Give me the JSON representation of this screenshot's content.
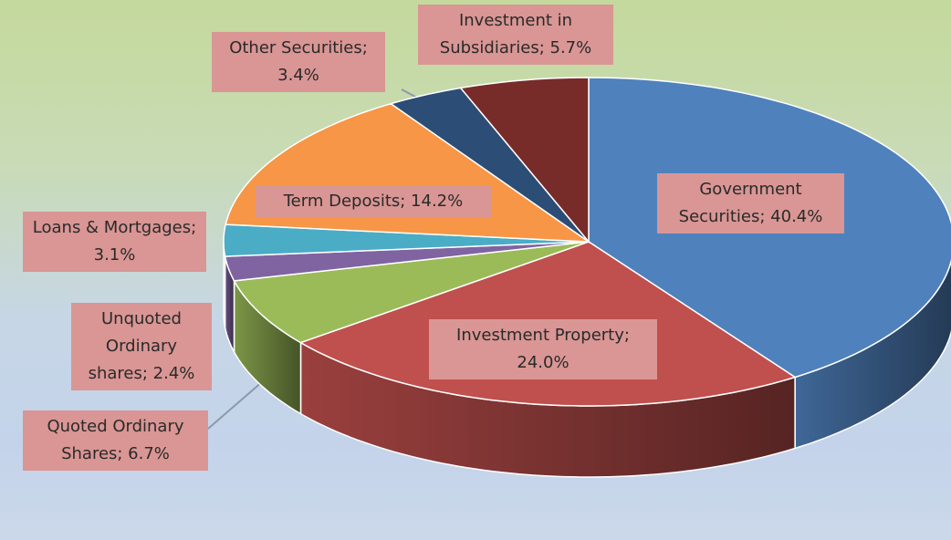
{
  "chart_data": {
    "type": "pie3d",
    "values": [
      40.4,
      24.0,
      6.7,
      2.4,
      3.1,
      14.2,
      3.4,
      5.7
    ],
    "value_labels": [
      "Government Securities; 40.4%",
      "Investment Property; 24.0%",
      "Quoted Ordinary Shares; 6.7%",
      "Unquoted Ordinary shares; 2.4%",
      "Loans & Mortgages; 3.1%",
      "Term Deposits; 14.2%",
      "Other Securities; 3.4%",
      "Investment in Subsidiaries; 5.7%"
    ],
    "colors": [
      "#4f81bd",
      "#c0504d",
      "#9bbb59",
      "#8064a2",
      "#4bacc6",
      "#f79646",
      "#2c4d75",
      "#772c2a"
    ]
  }
}
